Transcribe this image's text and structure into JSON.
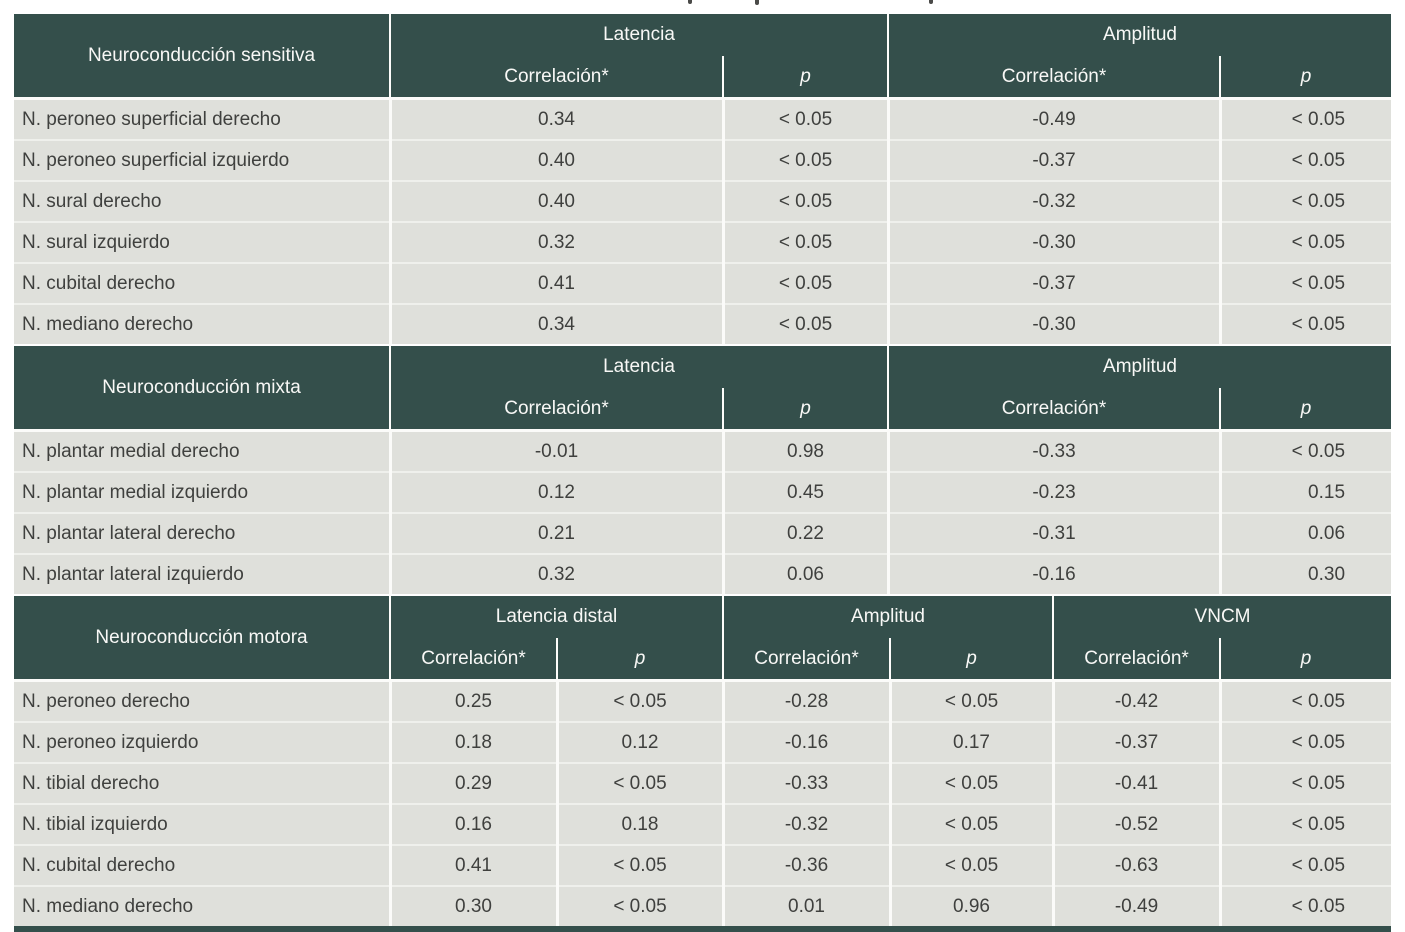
{
  "table_title": "",
  "colors": {
    "header_bg": "#344F4B",
    "header_text": "#F8F8F6",
    "row_bg": "#DFE0DB",
    "row_text": "#3F403E",
    "separator": "#FBFBF9"
  },
  "sections": [
    {
      "title": "Neuroconducción sensitiva",
      "groups": [
        "Latencia",
        "Amplitud"
      ],
      "subheaders": [
        "Correlación*",
        "p",
        "Correlación*",
        "p"
      ],
      "rows": [
        {
          "name": "N. peroneo superficial derecho",
          "values": [
            "0.34",
            "< 0.05",
            "-0.49",
            "< 0.05"
          ]
        },
        {
          "name": "N. peroneo superficial izquierdo",
          "values": [
            "0.40",
            "< 0.05",
            "-0.37",
            "< 0.05"
          ]
        },
        {
          "name": "N. sural derecho",
          "values": [
            "0.40",
            "< 0.05",
            "-0.32",
            "< 0.05"
          ]
        },
        {
          "name": "N. sural izquierdo",
          "values": [
            "0.32",
            "< 0.05",
            "-0.30",
            "< 0.05"
          ]
        },
        {
          "name": "N. cubital derecho",
          "values": [
            "0.41",
            "< 0.05",
            "-0.37",
            "< 0.05"
          ]
        },
        {
          "name": "N. mediano derecho",
          "values": [
            "0.34",
            "< 0.05",
            "-0.30",
            "< 0.05"
          ]
        }
      ]
    },
    {
      "title": "Neuroconducción mixta",
      "groups": [
        "Latencia",
        "Amplitud"
      ],
      "subheaders": [
        "Correlación*",
        "p",
        "Correlación*",
        "p"
      ],
      "rows": [
        {
          "name": "N. plantar medial derecho",
          "values": [
            "-0.01",
            "0.98",
            "-0.33",
            "< 0.05"
          ]
        },
        {
          "name": "N. plantar medial izquierdo",
          "values": [
            "0.12",
            "0.45",
            "-0.23",
            "0.15"
          ]
        },
        {
          "name": "N. plantar lateral derecho",
          "values": [
            "0.21",
            "0.22",
            "-0.31",
            "0.06"
          ]
        },
        {
          "name": "N. plantar lateral izquierdo",
          "values": [
            "0.32",
            "0.06",
            "-0.16",
            "0.30"
          ]
        }
      ]
    },
    {
      "title": "Neuroconducción motora",
      "groups": [
        "Latencia distal",
        "Amplitud",
        "VNCM"
      ],
      "subheaders": [
        "Correlación*",
        "p",
        "Correlación*",
        "p",
        "Correlación*",
        "p"
      ],
      "rows": [
        {
          "name": "N. peroneo derecho",
          "values": [
            "0.25",
            "< 0.05",
            "-0.28",
            "< 0.05",
            "-0.42",
            "< 0.05"
          ]
        },
        {
          "name": "N. peroneo izquierdo",
          "values": [
            "0.18",
            "0.12",
            "-0.16",
            "0.17",
            "-0.37",
            "< 0.05"
          ]
        },
        {
          "name": "N. tibial derecho",
          "values": [
            "0.29",
            "< 0.05",
            "-0.33",
            "< 0.05",
            "-0.41",
            "< 0.05"
          ]
        },
        {
          "name": "N. tibial izquierdo",
          "values": [
            "0.16",
            "0.18",
            "-0.32",
            "< 0.05",
            "-0.52",
            "< 0.05"
          ]
        },
        {
          "name": "N. cubital derecho",
          "values": [
            "0.41",
            "< 0.05",
            "-0.36",
            "< 0.05",
            "-0.63",
            "< 0.05"
          ]
        },
        {
          "name": "N. mediano derecho",
          "values": [
            "0.30",
            "< 0.05",
            "0.01",
            "0.96",
            "-0.49",
            "< 0.05"
          ]
        }
      ]
    }
  ]
}
